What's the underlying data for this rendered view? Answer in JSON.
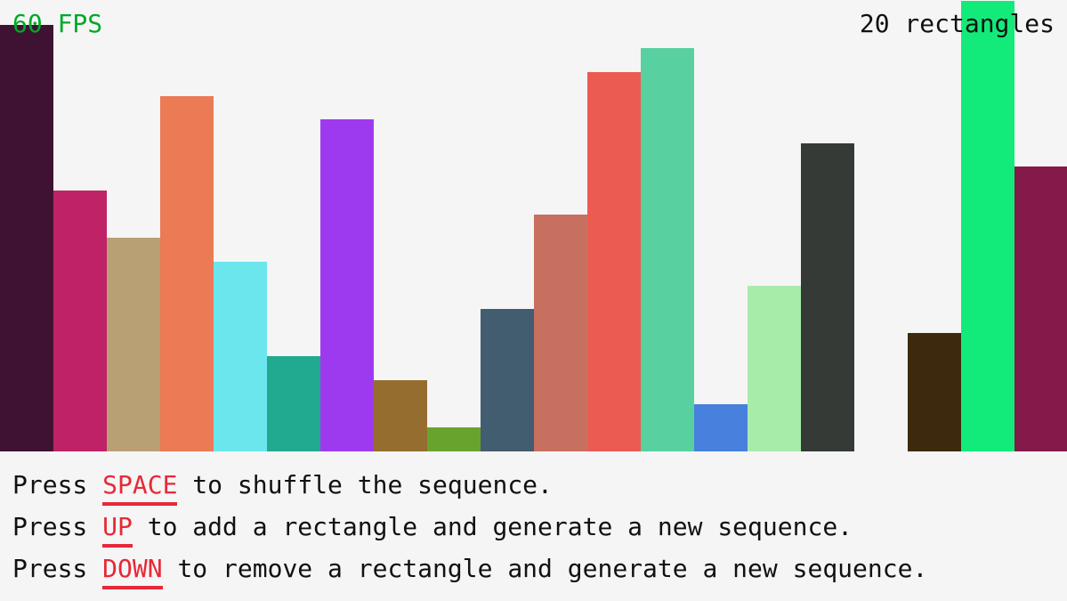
{
  "hud": {
    "fps": "60 FPS",
    "count": "20 rectangles"
  },
  "colors": {
    "fps": "#00a82a",
    "key": "#e62937",
    "background": "#f5f5f5"
  },
  "bars": {
    "max_value": 19,
    "values": [
      18,
      11,
      9,
      15,
      8,
      4,
      14,
      3,
      1,
      6,
      10,
      16,
      17,
      2,
      7,
      13,
      0,
      5,
      19,
      12
    ],
    "colors": [
      "#3f1233",
      "#bf2266",
      "#b8a074",
      "#eb7a55",
      "#6be6ed",
      "#22aa90",
      "#9d3af0",
      "#956d2f",
      "#68a42c",
      "#425c70",
      "#c87060",
      "#ec5b52",
      "#58d0a0",
      "#4780dd",
      "#a8ecaa",
      "#353a36",
      "#f5f5f5",
      "#3d2a0e",
      "#12eb7a",
      "#841a4a"
    ]
  },
  "instructions": [
    {
      "pre": "Press ",
      "key": "SPACE",
      "post": " to shuffle the sequence."
    },
    {
      "pre": "Press ",
      "key": "UP",
      "post": " to add a rectangle and generate a new sequence."
    },
    {
      "pre": "Press ",
      "key": "DOWN",
      "post": " to remove a rectangle and generate a new sequence."
    }
  ]
}
